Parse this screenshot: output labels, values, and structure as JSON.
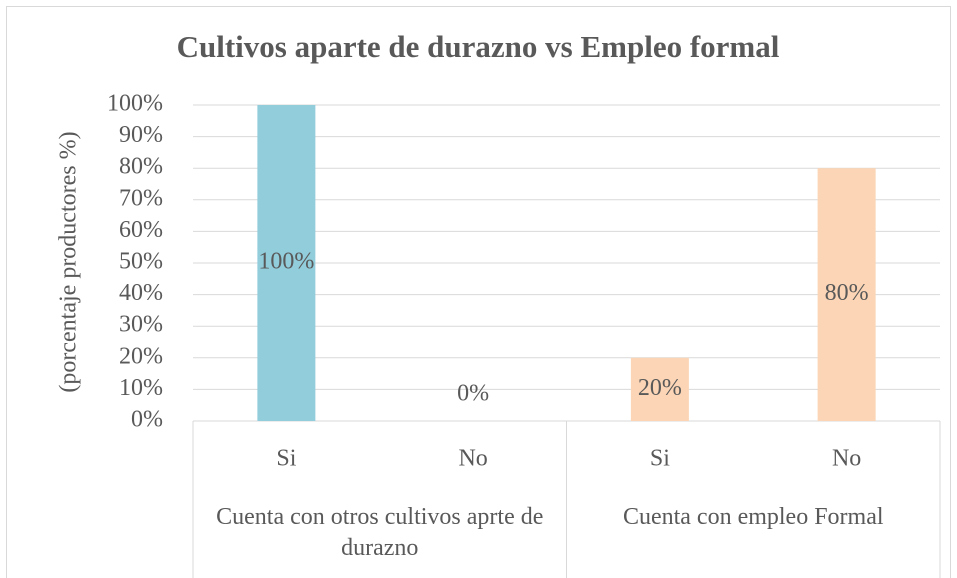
{
  "chart_data": {
    "type": "bar",
    "title": "Cultivos aparte de durazno vs Empleo formal",
    "y_label": "(porcentaje productores %)",
    "categories": [
      "Si",
      "No",
      "Si",
      "No"
    ],
    "groups": [
      {
        "name": "Cuenta con otros cultivos aprte de durazno",
        "span": 2
      },
      {
        "name": "Cuenta con empleo Formal",
        "span": 2
      }
    ],
    "values": [
      100,
      0,
      20,
      80
    ],
    "value_labels": [
      "100%",
      "0%",
      "20%",
      "80%"
    ],
    "colors": [
      "#92cddc",
      "#92cddc",
      "#fbd5b5",
      "#fbd5b5"
    ],
    "ylim": [
      0,
      100
    ],
    "yticks": [
      {
        "value": 0,
        "label": "0%"
      },
      {
        "value": 10,
        "label": "10%"
      },
      {
        "value": 20,
        "label": "20%"
      },
      {
        "value": 30,
        "label": "30%"
      },
      {
        "value": 40,
        "label": "40%"
      },
      {
        "value": 50,
        "label": "50%"
      },
      {
        "value": 60,
        "label": "60%"
      },
      {
        "value": 70,
        "label": "70%"
      },
      {
        "value": 80,
        "label": "80%"
      },
      {
        "value": 90,
        "label": "90%"
      },
      {
        "value": 100,
        "label": "100%"
      }
    ],
    "grid": true
  }
}
